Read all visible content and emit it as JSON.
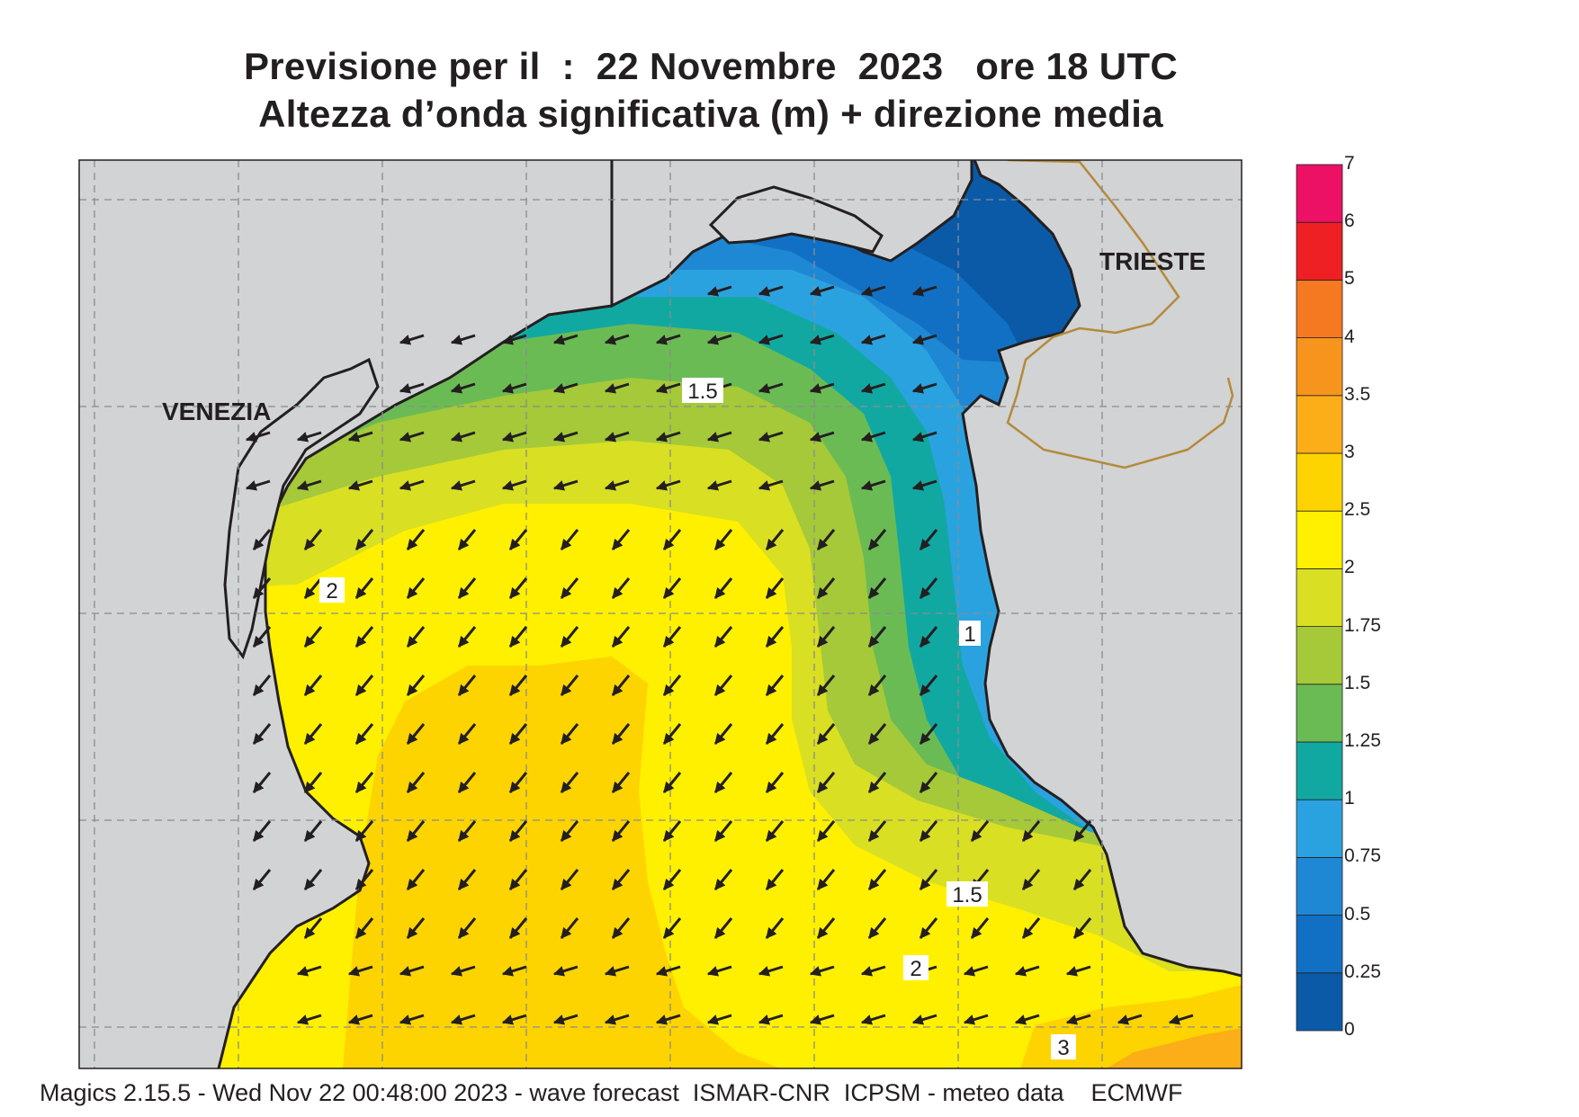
{
  "title_line1": "Previsione per il  :  22 Novembre  2023   ore 18 UTC",
  "title_line2": "Altezza d’onda significativa (m) + direzione media",
  "places": {
    "venezia": "VENEZIA",
    "trieste": "TRIESTE"
  },
  "contour_labels": [
    "1.5",
    "2",
    "1",
    "1.5",
    "2",
    "3"
  ],
  "footer": "Magics 2.15.5 - Wed Nov 22 00:48:00 2023 - wave forecast  ISMAR-CNR  ICPSM - meteo data    ECMWF",
  "colorbar": {
    "levels": [
      "0",
      "0.25",
      "0.5",
      "0.75",
      "1",
      "1.25",
      "1.5",
      "1.75",
      "2",
      "2.5",
      "3",
      "3.5",
      "4",
      "5",
      "6",
      "7"
    ],
    "colors": [
      "#0a5aa8",
      "#1270c4",
      "#1f88d4",
      "#2ba2e0",
      "#12a8a2",
      "#6bbb55",
      "#a5c938",
      "#d9df22",
      "#fff000",
      "#fdd400",
      "#fbae17",
      "#f7941d",
      "#f47920",
      "#ee2024",
      "#ec1164"
    ]
  },
  "land_color": "#d1d3d4",
  "wave_direction": "toward south-west"
}
